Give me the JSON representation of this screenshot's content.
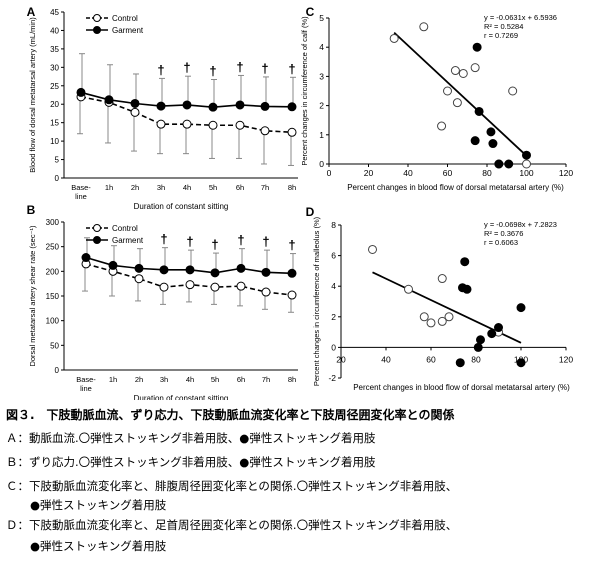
{
  "chart_data": [
    {
      "panel": "A",
      "type": "line",
      "categories": [
        "Base-\nline",
        "1h",
        "2h",
        "3h",
        "4h",
        "5h",
        "6h",
        "7h",
        "8h"
      ],
      "series": [
        {
          "name": "Control",
          "style": "dashed-open",
          "values": [
            22,
            20.5,
            17.8,
            14.6,
            14.6,
            14.3,
            14.3,
            12.8,
            12.4
          ],
          "errors": [
            10,
            11,
            10.5,
            8,
            8,
            9,
            9,
            9,
            9
          ]
        },
        {
          "name": "Garment",
          "style": "solid-filled",
          "values": [
            23.2,
            21.2,
            20.2,
            19.5,
            19.8,
            19.2,
            19.8,
            19.4,
            19.3
          ],
          "errors": [
            10.5,
            9.5,
            8,
            7.5,
            7.8,
            7.5,
            8,
            8,
            8
          ]
        }
      ],
      "daggers_at": [
        3,
        4,
        5,
        6,
        7,
        8
      ],
      "dagger": "†",
      "ylabel": "Blood flow of dorsal metatarsal artery (mL/min)",
      "xlabel": "Duration of constant sitting",
      "ylim": [
        0,
        45
      ],
      "yticks": [
        0,
        5,
        10,
        15,
        20,
        25,
        30,
        35,
        40,
        45
      ]
    },
    {
      "panel": "B",
      "type": "line",
      "categories": [
        "Base-\nline",
        "1h",
        "2h",
        "3h",
        "4h",
        "5h",
        "6h",
        "7h",
        "8h"
      ],
      "series": [
        {
          "name": "Control",
          "style": "dashed-open",
          "values": [
            215,
            200,
            185,
            168,
            173,
            168,
            170,
            158,
            152
          ],
          "errors": [
            55,
            50,
            45,
            35,
            35,
            35,
            40,
            35,
            35
          ]
        },
        {
          "name": "Garment",
          "style": "solid-filled",
          "values": [
            228,
            212,
            206,
            203,
            203,
            197,
            206,
            198,
            196
          ],
          "errors": [
            40,
            40,
            40,
            45,
            40,
            40,
            40,
            45,
            40
          ]
        }
      ],
      "daggers_at": [
        3,
        4,
        5,
        6,
        7,
        8
      ],
      "dagger": "†",
      "ylabel": "Dorsal metatarsal artery shear rate (sec⁻¹)",
      "xlabel": "Duration of constant sitting",
      "ylim": [
        0,
        300
      ],
      "yticks": [
        0,
        50,
        100,
        150,
        200,
        250,
        300
      ]
    },
    {
      "panel": "C",
      "type": "scatter",
      "open": [
        [
          33,
          4.3
        ],
        [
          48,
          4.7
        ],
        [
          57,
          1.3
        ],
        [
          60,
          2.5
        ],
        [
          64,
          3.2
        ],
        [
          65,
          2.1
        ],
        [
          68,
          3.1
        ],
        [
          74,
          3.3
        ],
        [
          86,
          0.0
        ],
        [
          93,
          2.5
        ],
        [
          100,
          0.0
        ]
      ],
      "filled": [
        [
          75,
          4.0
        ],
        [
          74,
          0.8
        ],
        [
          76,
          1.8
        ],
        [
          82,
          1.1
        ],
        [
          83,
          0.7
        ],
        [
          86,
          0.0
        ],
        [
          91,
          0.0
        ],
        [
          100,
          0.3
        ]
      ],
      "fit": {
        "x": [
          33,
          100
        ],
        "y": [
          4.5,
          0.28
        ]
      },
      "equation": "y = -0.0631x + 6.5936",
      "r2": "R² = 0.5284",
      "r": "r = 0.7269",
      "ylabel": "Percent changes in circumference of calf (%)",
      "xlabel": "Percent changes in blood flow of dorsal metatarsal artery (%)",
      "xlim": [
        0,
        120
      ],
      "ylim": [
        0,
        5
      ],
      "xticks": [
        0,
        20,
        40,
        60,
        80,
        100,
        120
      ],
      "yticks": [
        0,
        1,
        2,
        3,
        4,
        5
      ]
    },
    {
      "panel": "D",
      "type": "scatter",
      "open": [
        [
          34,
          6.4
        ],
        [
          50,
          3.8
        ],
        [
          57,
          2.0
        ],
        [
          60,
          1.6
        ],
        [
          65,
          4.5
        ],
        [
          65,
          1.7
        ],
        [
          68,
          2.0
        ],
        [
          90,
          1.0
        ]
      ],
      "filled": [
        [
          75,
          5.6
        ],
        [
          74,
          3.9
        ],
        [
          76,
          3.8
        ],
        [
          73,
          -1.0
        ],
        [
          81,
          0.0
        ],
        [
          82,
          0.5
        ],
        [
          87,
          0.9
        ],
        [
          90,
          1.3
        ],
        [
          100,
          2.6
        ],
        [
          100,
          -1.0
        ]
      ],
      "fit": {
        "x": [
          34,
          100
        ],
        "y": [
          4.91,
          0.3
        ]
      },
      "equation": "y = -0.0698x + 7.2823",
      "r2": "R² = 0.3676",
      "r": "r = 0.6063",
      "ylabel": "Percent changes in circumference of malleolus (%)",
      "xlabel": "Percent changes in blood flow of dorsal metatarsal artery (%)",
      "xlim": [
        20,
        120
      ],
      "ylim": [
        -2,
        8
      ],
      "xticks": [
        20,
        40,
        60,
        80,
        100,
        120
      ],
      "yticks": [
        -2,
        0,
        2,
        4,
        6,
        8
      ]
    }
  ],
  "caption": {
    "title": "図３.　下肢動脈血流、ずり応力、下肢動脈血流変化率と下肢周径囲変化率との関係",
    "line_a": "Ａ：動脈血流.〇弾性ストッキング非着用肢、●弾性ストッキング着用肢",
    "line_b": "Ｂ：ずり応力.〇弾性ストッキング非着用肢、●弾性ストッキング着用肢",
    "line_c1": "Ｃ：下肢動脈血流変化率と、腓腹周径囲変化率との関係.〇弾性ストッキング非着用肢、",
    "line_c2": "●弾性ストッキング着用肢",
    "line_d1": "Ｄ：下肢動脈血流変化率と、足首周径囲変化率との関係.〇弾性ストッキング非着用肢、",
    "line_d2": "●弾性ストッキング着用肢"
  }
}
